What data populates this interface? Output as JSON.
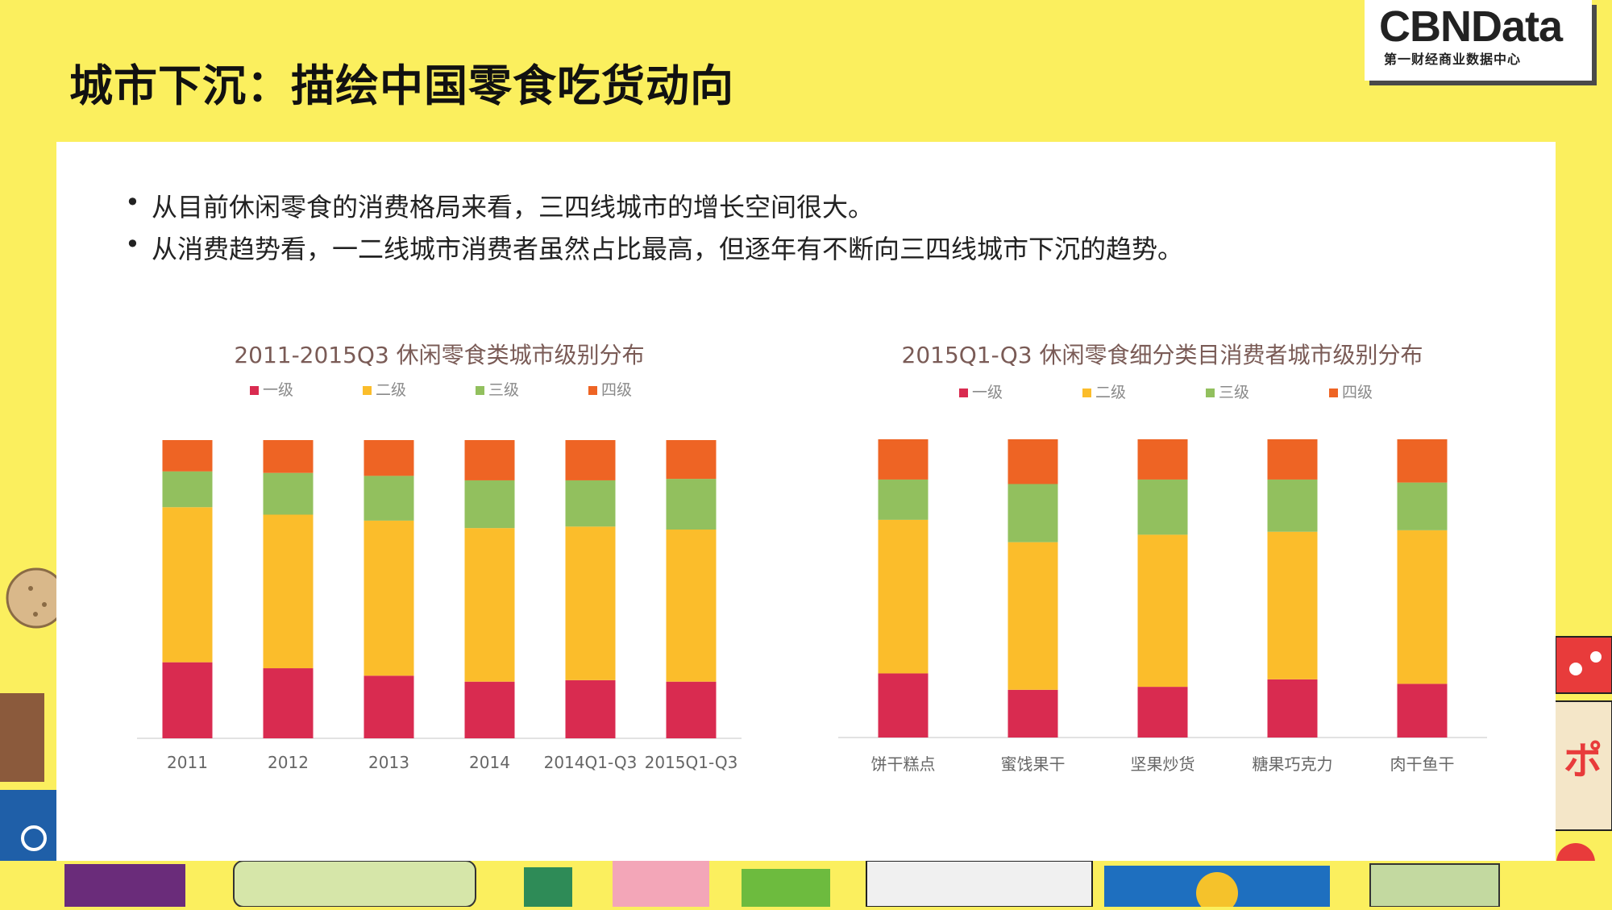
{
  "header": {
    "title": "城市下沉：描绘中国零食吃货动向"
  },
  "logo": {
    "name": "CBNData",
    "tagline": "第一财经商业数据中心"
  },
  "bullets": [
    "从目前休闲零食的消费格局来看，三四线城市的增长空间很大。",
    "从消费趋势看，一二线城市消费者虽然占比最高，但逐年有不断向三四线城市下沉的趋势。"
  ],
  "colors": {
    "tier1": "#d92b50",
    "tier2": "#fbbd2b",
    "tier3": "#92c05e",
    "tier4": "#ee6424",
    "background": "#fbef5e",
    "title_text": "#7a5b56"
  },
  "chart_data": [
    {
      "type": "bar",
      "stacked": true,
      "normalized_percent": true,
      "title": "2011-2015Q3 休闲零食类城市级别分布",
      "categories": [
        "2011",
        "2012",
        "2013",
        "2014",
        "2014Q1-Q3",
        "2015Q1-Q3"
      ],
      "series": [
        {
          "name": "一级",
          "values": [
            25.5,
            23.5,
            21,
            19,
            19.5,
            19
          ]
        },
        {
          "name": "二级",
          "values": [
            52,
            51.5,
            52,
            51.5,
            51.5,
            51
          ]
        },
        {
          "name": "三级",
          "values": [
            12,
            14,
            15,
            16,
            15.5,
            17
          ]
        },
        {
          "name": "四级",
          "values": [
            10.5,
            11,
            12,
            13.5,
            13.5,
            13
          ]
        }
      ],
      "ylim": [
        0,
        100
      ],
      "legend_position": "top",
      "grid": false
    },
    {
      "type": "bar",
      "stacked": true,
      "normalized_percent": true,
      "title": "2015Q1-Q3 休闲零食细分类目消费者城市级别分布",
      "categories": [
        "饼干糕点",
        "蜜饯果干",
        "坚果炒货",
        "糖果巧克力",
        "肉干鱼干"
      ],
      "series": [
        {
          "name": "一级",
          "values": [
            21.5,
            16,
            17,
            19.5,
            18
          ]
        },
        {
          "name": "二级",
          "values": [
            51.5,
            49.5,
            51,
            49.5,
            51.5
          ]
        },
        {
          "name": "三级",
          "values": [
            13.5,
            19.5,
            18.5,
            17.5,
            16
          ]
        },
        {
          "name": "四级",
          "values": [
            13.5,
            15,
            13.5,
            13.5,
            14.5
          ]
        }
      ],
      "ylim": [
        0,
        100
      ],
      "legend_position": "top",
      "grid": false
    }
  ]
}
